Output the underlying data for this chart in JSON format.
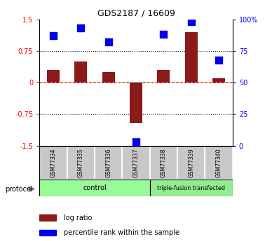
{
  "title": "GDS2187 / 16609",
  "samples": [
    "GSM77334",
    "GSM77335",
    "GSM77336",
    "GSM77337",
    "GSM77338",
    "GSM77339",
    "GSM77340"
  ],
  "log_ratio": [
    0.3,
    0.5,
    0.25,
    -0.95,
    0.3,
    1.2,
    0.1
  ],
  "percentile_rank": [
    87,
    93,
    82,
    3,
    88,
    98,
    68
  ],
  "ylim_left": [
    -1.5,
    1.5
  ],
  "ylim_right": [
    0,
    100
  ],
  "yticks_left": [
    -1.5,
    -0.75,
    0,
    0.75,
    1.5
  ],
  "ytick_labels_left": [
    "-1.5",
    "-0.75",
    "0",
    "0.75",
    "1.5"
  ],
  "yticks_right": [
    0,
    25,
    50,
    75,
    100
  ],
  "ytick_labels_right": [
    "0",
    "25",
    "50",
    "75",
    "100%"
  ],
  "hlines_dotted": [
    -0.75,
    0.75
  ],
  "bar_color": "#8B1A1A",
  "dot_color": "#0000EE",
  "dot_size": 45,
  "ctrl_color": "#98FB98",
  "tfus_color": "#90EE90",
  "protocol_label": "protocol",
  "legend_items": [
    "log ratio",
    "percentile rank within the sample"
  ],
  "legend_colors": [
    "#8B1A1A",
    "#0000EE"
  ]
}
